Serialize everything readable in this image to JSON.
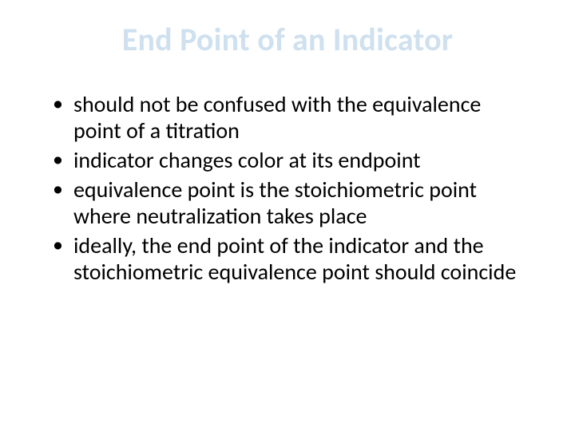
{
  "slide": {
    "title_text": "End Point of an Indicator",
    "title_color": "#cfe0ef",
    "title_fontsize": 40,
    "title_fontweight": 700,
    "body_fontsize": 28,
    "body_color": "#000000",
    "background_color": "#ffffff",
    "bullets": [
      "should not be confused with the equivalence point of a titration",
      "indicator changes color at its endpoint",
      "equivalence point is the stoichiometric point where neutralization takes place",
      "ideally, the end point of the indicator and the stoichiometric equivalence point should coincide"
    ]
  }
}
